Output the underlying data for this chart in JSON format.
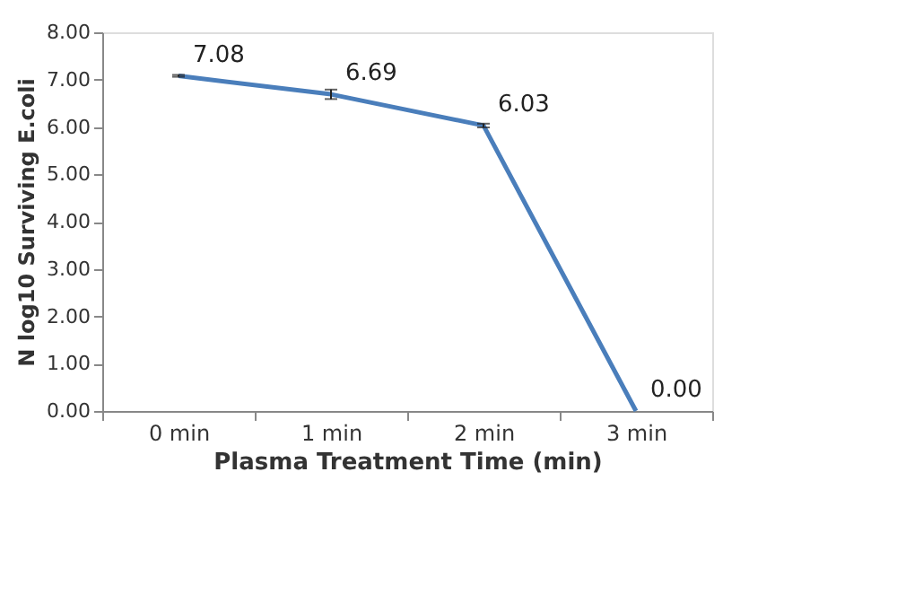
{
  "chart_data": {
    "type": "line",
    "xlabel": "Plasma Treatment Time (min)",
    "ylabel": "N log10 Surviving E.coli",
    "categories": [
      "0 min",
      "1 min",
      "2 min",
      "3 min"
    ],
    "series": [
      {
        "color": "#4a7ebb",
        "values": [
          7.08,
          6.69,
          6.03,
          0.0
        ],
        "errors": [
          0.02,
          0.1,
          0.04,
          null
        ],
        "value_labels": [
          "7.08",
          "6.69",
          "6.03",
          "0.00"
        ]
      }
    ],
    "ylim": [
      0,
      8
    ],
    "yticks": [
      {
        "value": 0,
        "label": "0.00"
      },
      {
        "value": 1,
        "label": "1.00"
      },
      {
        "value": 2,
        "label": "2.00"
      },
      {
        "value": 3,
        "label": "3.00"
      },
      {
        "value": 4,
        "label": "4.00"
      },
      {
        "value": 5,
        "label": "5.00"
      },
      {
        "value": 6,
        "label": "6.00"
      },
      {
        "value": 7,
        "label": "7.00"
      },
      {
        "value": 8,
        "label": "8.00"
      }
    ],
    "grid": false,
    "marker": "none",
    "line_style": "solid"
  }
}
